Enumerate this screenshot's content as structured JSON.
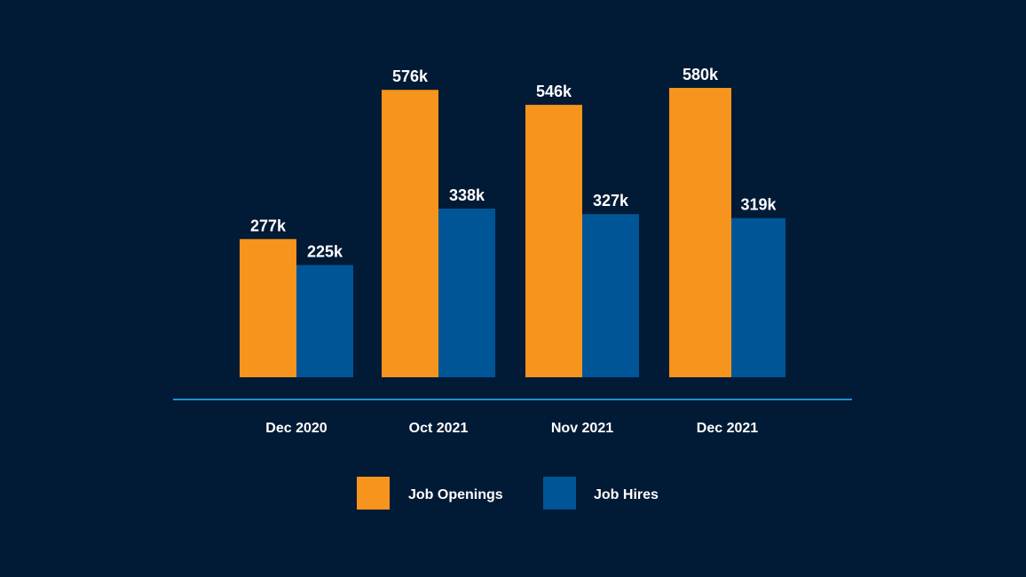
{
  "chart_data": {
    "type": "bar",
    "categories": [
      "Dec 2020",
      "Oct 2021",
      "Nov 2021",
      "Dec 2021"
    ],
    "series": [
      {
        "name": "Job Openings",
        "color": "#f7941d",
        "values": [
          277,
          576,
          546,
          580
        ],
        "labels": [
          "277k",
          "576k",
          "546k",
          "580k"
        ]
      },
      {
        "name": "Job Hires",
        "color": "#005596",
        "values": [
          225,
          338,
          327,
          319
        ],
        "labels": [
          "225k",
          "338k",
          "327k",
          "319k"
        ]
      }
    ],
    "unit": "k",
    "ylim": [
      0,
      580
    ],
    "grid": false,
    "legend_position": "bottom",
    "axis_color": "#1f8fd6",
    "background": "#011a35"
  }
}
